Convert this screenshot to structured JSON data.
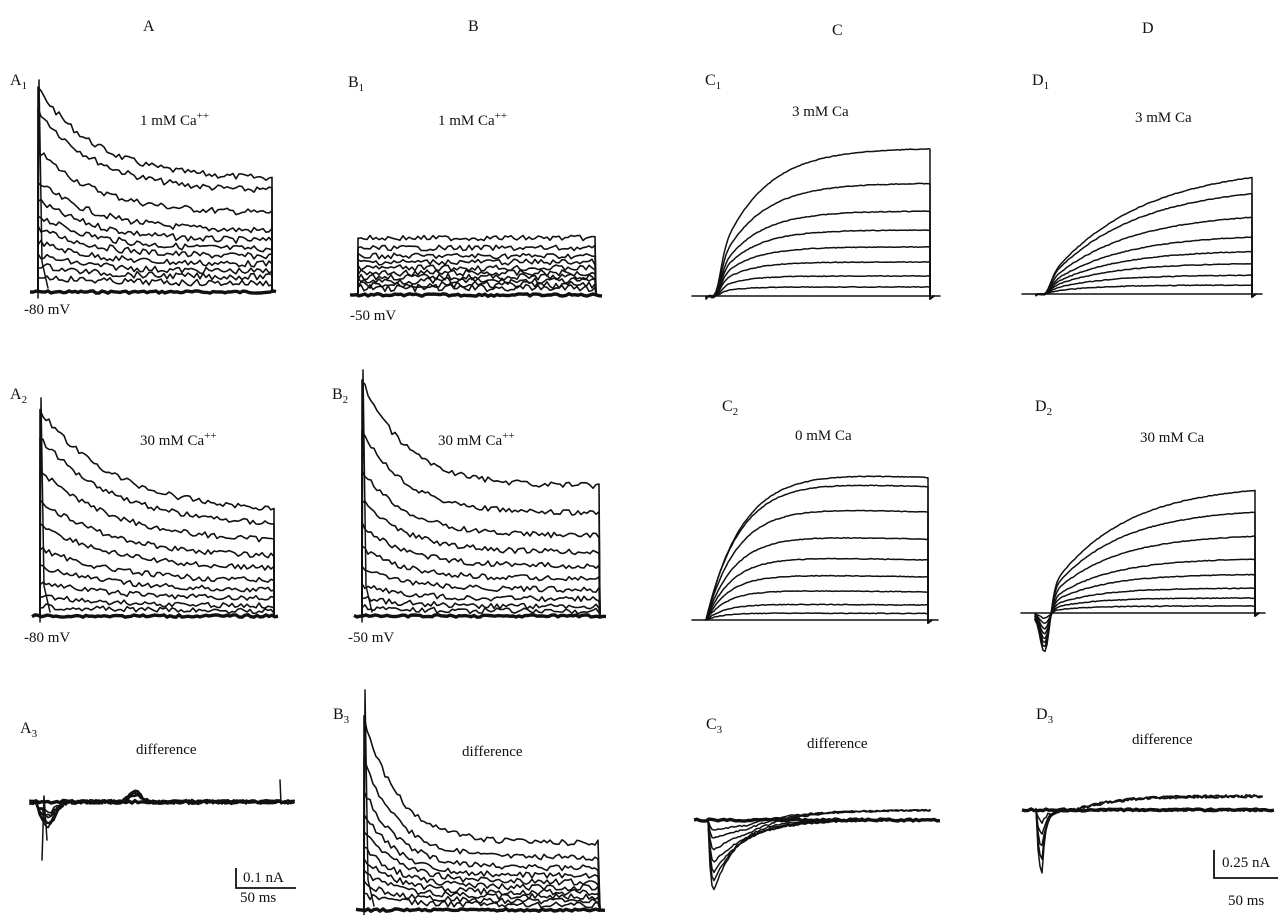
{
  "columns": [
    "A",
    "B",
    "C",
    "D"
  ],
  "panels": [
    {
      "id": "A1",
      "letter": "A",
      "sub": "1",
      "condition": "1 mM Ca",
      "superscript": "++",
      "holding": "-80 mV"
    },
    {
      "id": "B1",
      "letter": "B",
      "sub": "1",
      "condition": "1 mM Ca",
      "superscript": "++",
      "holding": "-50 mV"
    },
    {
      "id": "C1",
      "letter": "C",
      "sub": "1",
      "condition": "3 mM Ca",
      "superscript": "",
      "holding": ""
    },
    {
      "id": "D1",
      "letter": "D",
      "sub": "1",
      "condition": "3 mM Ca",
      "superscript": "",
      "holding": ""
    },
    {
      "id": "A2",
      "letter": "A",
      "sub": "2",
      "condition": "30 mM Ca",
      "superscript": "++",
      "holding": "-80 mV"
    },
    {
      "id": "B2",
      "letter": "B",
      "sub": "2",
      "condition": "30 mM Ca",
      "superscript": "++",
      "holding": "-50 mV"
    },
    {
      "id": "C2",
      "letter": "C",
      "sub": "2",
      "condition": "0 mM Ca",
      "superscript": "",
      "holding": ""
    },
    {
      "id": "D2",
      "letter": "D",
      "sub": "2",
      "condition": "30 mM Ca",
      "superscript": "",
      "holding": ""
    },
    {
      "id": "A3",
      "letter": "A",
      "sub": "3",
      "condition": "difference",
      "superscript": "",
      "holding": ""
    },
    {
      "id": "B3",
      "letter": "B",
      "sub": "3",
      "condition": "difference",
      "superscript": "",
      "holding": ""
    },
    {
      "id": "C3",
      "letter": "C",
      "sub": "3",
      "condition": "difference",
      "superscript": "",
      "holding": ""
    },
    {
      "id": "D3",
      "letter": "D",
      "sub": "3",
      "condition": "difference",
      "superscript": "",
      "holding": ""
    }
  ],
  "scale_bars": [
    {
      "current": "0.1 nA",
      "time": "50 ms"
    },
    {
      "current": "0.25 nA",
      "time": "50 ms"
    }
  ]
}
